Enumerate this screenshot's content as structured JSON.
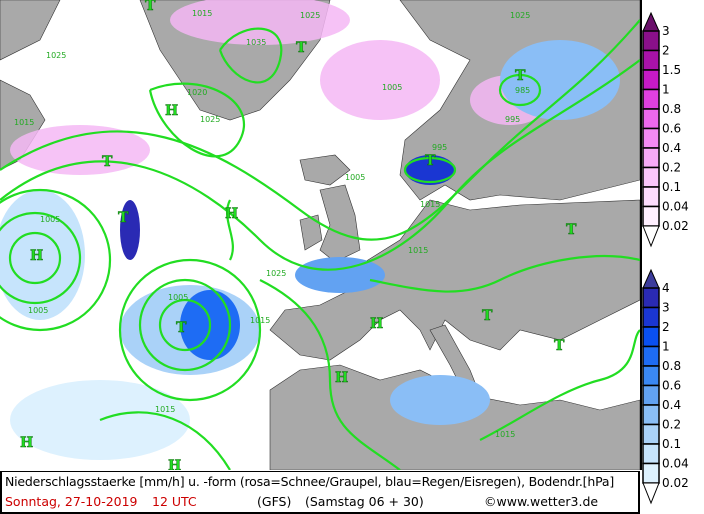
{
  "map": {
    "highs": [
      "H",
      "H",
      "H",
      "H",
      "H",
      "H",
      "H"
    ],
    "lows": [
      "T",
      "T",
      "T",
      "T",
      "T",
      "T",
      "T",
      "T",
      "T",
      "T"
    ],
    "isobar_labels": [
      "1015",
      "1035",
      "1025",
      "1020",
      "1025",
      "1015",
      "1005",
      "1025",
      "1005",
      "995",
      "985",
      "995",
      "1005",
      "1005",
      "1015",
      "1025",
      "1005",
      "1025",
      "1015",
      "1015",
      "1015",
      "1015"
    ],
    "colors": {
      "sea": "#ffffff",
      "land": "#a9a9a9",
      "isobar": "#22dd22"
    }
  },
  "legend": {
    "snow": {
      "labels": [
        "3",
        "2",
        "1.5",
        "1",
        "0.8",
        "0.6",
        "0.4",
        "0.2",
        "0.1",
        "0.04",
        "0.02"
      ],
      "colors": [
        "#6a0f6a",
        "#8a108a",
        "#a812a8",
        "#c61ac6",
        "#e040e0",
        "#ec68ec",
        "#f38af3",
        "#f7aaf7",
        "#fac6fa",
        "#fddcfd",
        "#fff0ff"
      ]
    },
    "rain": {
      "labels": [
        "4",
        "3",
        "2",
        "1",
        "0.8",
        "0.6",
        "0.4",
        "0.2",
        "0.1",
        "0.04",
        "0.02"
      ],
      "colors": [
        "#3c3c9c",
        "#2a2ab4",
        "#1a36d2",
        "#0a50f0",
        "#1e6cf4",
        "#3a88f4",
        "#62a2f2",
        "#8abef6",
        "#aad2f8",
        "#c6e4fc",
        "#ddf1fe"
      ]
    }
  },
  "footer": {
    "description": "Niederschlagsstaerke [mm/h] u. -form (rosa=Schnee/Graupel, blau=Regen/Eisregen), Bodendr.[hPa]",
    "date": "Sonntag, 27-10-2019",
    "time": "12 UTC",
    "model": "(GFS)",
    "run": "(Samstag 06 + 30)",
    "copyright": "©www.wetter3.de",
    "date_color": "#cc0000"
  }
}
